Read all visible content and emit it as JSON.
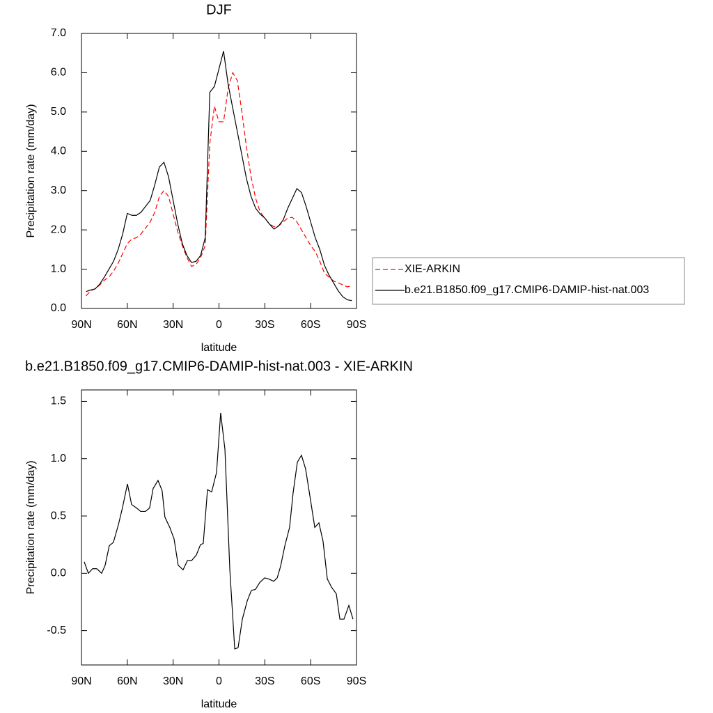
{
  "chart_data": [
    {
      "type": "line",
      "title": "DJF",
      "xlabel": "latitude",
      "ylabel": "Precipitation rate (mm/day)",
      "x": [
        87,
        84,
        81,
        78,
        75,
        72,
        69,
        66,
        63,
        60,
        57,
        54,
        51,
        48,
        45,
        42,
        39,
        36,
        33,
        30,
        27,
        24,
        21,
        18,
        15,
        12,
        9,
        6,
        3,
        0,
        -3,
        -6,
        -9,
        -12,
        -15,
        -18,
        -21,
        -24,
        -27,
        -30,
        -33,
        -36,
        -39,
        -42,
        -45,
        -48,
        -51,
        -54,
        -57,
        -60,
        -63,
        -66,
        -69,
        -72,
        -75,
        -78,
        -81,
        -84,
        -87
      ],
      "series": [
        {
          "name": "XIE-ARKIN",
          "color": "#ff0000",
          "dashed": true,
          "values": [
            0.32,
            0.45,
            0.5,
            0.6,
            0.72,
            0.8,
            0.95,
            1.15,
            1.4,
            1.65,
            1.77,
            1.8,
            1.9,
            2.05,
            2.2,
            2.45,
            2.85,
            3.0,
            2.85,
            2.4,
            1.95,
            1.6,
            1.3,
            1.07,
            1.12,
            1.3,
            1.6,
            4.2,
            5.15,
            4.75,
            4.75,
            5.6,
            6.0,
            5.8,
            5.0,
            4.1,
            3.35,
            2.8,
            2.45,
            2.3,
            2.15,
            2.08,
            2.1,
            2.2,
            2.3,
            2.32,
            2.2,
            2.0,
            1.8,
            1.6,
            1.45,
            1.2,
            0.9,
            0.8,
            0.7,
            0.65,
            0.6,
            0.55,
            0.58
          ]
        },
        {
          "name": "b.e21.B1850.f09_g17.CMIP6-DAMIP-hist-nat.003",
          "color": "#000000",
          "dashed": false,
          "values": [
            0.43,
            0.47,
            0.5,
            0.62,
            0.8,
            1.0,
            1.2,
            1.5,
            1.9,
            2.42,
            2.37,
            2.37,
            2.45,
            2.6,
            2.75,
            3.15,
            3.6,
            3.72,
            3.35,
            2.75,
            2.15,
            1.65,
            1.35,
            1.17,
            1.2,
            1.35,
            1.8,
            5.5,
            5.65,
            6.1,
            6.55,
            5.7,
            5.1,
            4.5,
            3.9,
            3.3,
            2.85,
            2.55,
            2.4,
            2.3,
            2.15,
            2.02,
            2.1,
            2.25,
            2.55,
            2.8,
            3.05,
            2.95,
            2.6,
            2.2,
            1.8,
            1.5,
            1.1,
            0.85,
            0.65,
            0.45,
            0.3,
            0.22,
            0.2
          ]
        }
      ],
      "xlim": [
        90,
        -90
      ],
      "xticks": [
        {
          "value": 90,
          "label": "90N"
        },
        {
          "value": 60,
          "label": "60N"
        },
        {
          "value": 30,
          "label": "30N"
        },
        0,
        {
          "value": -30,
          "label": "30S"
        },
        {
          "value": -60,
          "label": "60S"
        },
        {
          "value": -90,
          "label": "90S"
        }
      ],
      "ylim": [
        0,
        7
      ],
      "yticks": [
        {
          "value": 0,
          "label": "0.0"
        },
        {
          "value": 1,
          "label": "1.0"
        },
        {
          "value": 2,
          "label": "2.0"
        },
        {
          "value": 3,
          "label": "3.0"
        },
        {
          "value": 4,
          "label": "4.0"
        },
        {
          "value": 5,
          "label": "5.0"
        },
        {
          "value": 6,
          "label": "6.0"
        },
        {
          "value": 7,
          "label": "7.0"
        }
      ],
      "legend": "right"
    },
    {
      "type": "line",
      "title": "b.e21.B1850.f09_g17.CMIP6-DAMIP-hist-nat.003 - XIE-ARKIN",
      "xlabel": "latitude",
      "ylabel": "Precipitation rate (mm/day)",
      "x": [
        88.2,
        85.5,
        82.7,
        80.0,
        76.8,
        74.5,
        71.8,
        69.1,
        65.9,
        63.2,
        59.9,
        57.2,
        54.0,
        51.3,
        48.1,
        45.4,
        43.1,
        39.9,
        37.2,
        35.4,
        32.2,
        29.4,
        26.7,
        23.5,
        20.7,
        18.0,
        14.8,
        12.1,
        10.3,
        7.5,
        4.8,
        1.6,
        -1.1,
        -3.9,
        -7.1,
        -10.3,
        -12.5,
        -15.3,
        -18.5,
        -21.2,
        -23.9,
        -26.7,
        -29.9,
        -32.6,
        -35.8,
        -38.1,
        -40.3,
        -43.1,
        -46.2,
        -48.5,
        -51.3,
        -54.0,
        -56.7,
        -59.9,
        -62.7,
        -65.4,
        -68.1,
        -70.9,
        -73.6,
        -76.8,
        -79.1,
        -81.8,
        -85.0,
        -87.7
      ],
      "values": [
        0.1,
        0,
        0.04,
        0.04,
        0,
        0.07,
        0.24,
        0.27,
        0.42,
        0.57,
        0.78,
        0.6,
        0.57,
        0.54,
        0.54,
        0.57,
        0.74,
        0.81,
        0.72,
        0.49,
        0.4,
        0.3,
        0.07,
        0.03,
        0.11,
        0.11,
        0.16,
        0.25,
        0.26,
        0.73,
        0.71,
        0.88,
        1.4,
        1.08,
        0.03,
        -0.66,
        -0.65,
        -0.4,
        -0.24,
        -0.15,
        -0.14,
        -0.08,
        -0.04,
        -0.05,
        -0.07,
        -0.04,
        0.06,
        0.24,
        0.4,
        0.7,
        0.97,
        1.03,
        0.91,
        0.64,
        0.4,
        0.44,
        0.28,
        -0.05,
        -0.12,
        -0.18,
        -0.4,
        -0.4,
        -0.28,
        -0.4
      ],
      "color": "#000000",
      "xlim": [
        90,
        -90
      ],
      "xticks": [
        {
          "value": 90,
          "label": "90N"
        },
        {
          "value": 60,
          "label": "60N"
        },
        {
          "value": 30,
          "label": "30N"
        },
        0,
        {
          "value": -30,
          "label": "30S"
        },
        {
          "value": -60,
          "label": "60S"
        },
        {
          "value": -90,
          "label": "90S"
        }
      ],
      "ylim": [
        -0.8,
        1.6
      ],
      "yticks": [
        -0.5,
        {
          "value": 0,
          "label": "0.0"
        },
        0.5,
        {
          "value": 1,
          "label": "1.0"
        },
        1.5
      ]
    }
  ]
}
